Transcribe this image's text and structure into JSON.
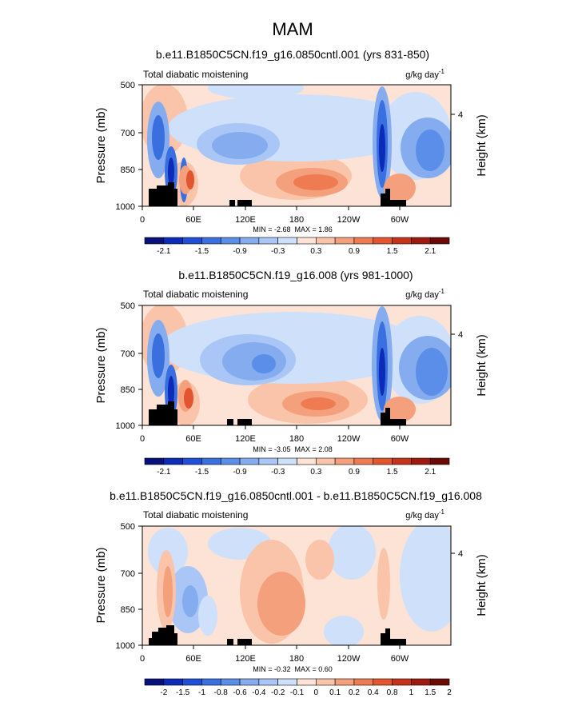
{
  "figure": {
    "title": "MAM"
  },
  "chart_data": [
    {
      "type": "heatmap",
      "title": "b.e11.B1850C5CN.f19_g16.0850cntl.001 (yrs 831-850)",
      "left_label": "Total diabatic moistening",
      "units": "g/kg day",
      "units_exp": "-1",
      "ylabel": "Pressure (mb)",
      "right_label": "Height (km)",
      "yticks": [
        500,
        700,
        850,
        1000
      ],
      "right_ticks": [
        "4"
      ],
      "xticks": [
        "0",
        "60E",
        "120E",
        "180",
        "120W",
        "60W"
      ],
      "stats": "MIN = -2.68  MAX = 1.86",
      "colorbar": {
        "colors": [
          "#08107a",
          "#0b2bb8",
          "#1e4fd6",
          "#3a6fe0",
          "#5b8ee8",
          "#86acf0",
          "#aac6f6",
          "#cfe0fb",
          "#fde3d6",
          "#f9c4a9",
          "#f4a07c",
          "#ee7b52",
          "#e2552f",
          "#c5331b",
          "#9e1a0e",
          "#6b0a05"
        ],
        "labels": [
          "-2.1",
          "-1.5",
          "-0.9",
          "-0.3",
          "0.3",
          "0.9",
          "1.5",
          "2.1"
        ],
        "label_positions": [
          1,
          3,
          5,
          7,
          9,
          11,
          13,
          15
        ]
      }
    },
    {
      "type": "heatmap",
      "title": "b.e11.B1850C5CN.f19_g16.008 (yrs 981-1000)",
      "left_label": "Total diabatic moistening",
      "units": "g/kg day",
      "units_exp": "-1",
      "ylabel": "Pressure (mb)",
      "right_label": "Height (km)",
      "yticks": [
        500,
        700,
        850,
        1000
      ],
      "right_ticks": [
        "4"
      ],
      "xticks": [
        "0",
        "60E",
        "120E",
        "180",
        "120W",
        "60W"
      ],
      "stats": "MIN = -3.05  MAX = 2.08",
      "colorbar": {
        "colors": [
          "#08107a",
          "#0b2bb8",
          "#1e4fd6",
          "#3a6fe0",
          "#5b8ee8",
          "#86acf0",
          "#aac6f6",
          "#cfe0fb",
          "#fde3d6",
          "#f9c4a9",
          "#f4a07c",
          "#ee7b52",
          "#e2552f",
          "#c5331b",
          "#9e1a0e",
          "#6b0a05"
        ],
        "labels": [
          "-2.1",
          "-1.5",
          "-0.9",
          "-0.3",
          "0.3",
          "0.9",
          "1.5",
          "2.1"
        ],
        "label_positions": [
          1,
          3,
          5,
          7,
          9,
          11,
          13,
          15
        ]
      }
    },
    {
      "type": "heatmap",
      "title": "b.e11.B1850C5CN.f19_g16.0850cntl.001 - b.e11.B1850C5CN.f19_g16.008",
      "left_label": "Total diabatic moistening",
      "units": "g/kg day",
      "units_exp": "-1",
      "ylabel": "Pressure (mb)",
      "right_label": "Height (km)",
      "yticks": [
        500,
        700,
        850,
        1000
      ],
      "right_ticks": [
        "4"
      ],
      "xticks": [
        "0",
        "60E",
        "120E",
        "180",
        "120W",
        "60W"
      ],
      "stats": "MIN = -0.32  MAX = 0.60",
      "colorbar": {
        "colors": [
          "#08107a",
          "#0b2bb8",
          "#1e4fd6",
          "#3a6fe0",
          "#5b8ee8",
          "#86acf0",
          "#aac6f6",
          "#cfe0fb",
          "#fde3d6",
          "#f9c4a9",
          "#f4a07c",
          "#ee7b52",
          "#e2552f",
          "#c5331b",
          "#9e1a0e",
          "#6b0a05"
        ],
        "labels": [
          "-2",
          "-1.5",
          "-1",
          "-0.8",
          "-0.6",
          "-0.4",
          "-0.2",
          "-0.1",
          "0",
          "0.1",
          "0.2",
          "0.4",
          "0.8",
          "1",
          "1.5",
          "2"
        ],
        "label_positions": [
          1,
          2,
          3,
          4,
          5,
          6,
          7,
          8,
          9,
          10,
          11,
          12,
          13,
          14,
          15,
          16
        ]
      }
    }
  ]
}
